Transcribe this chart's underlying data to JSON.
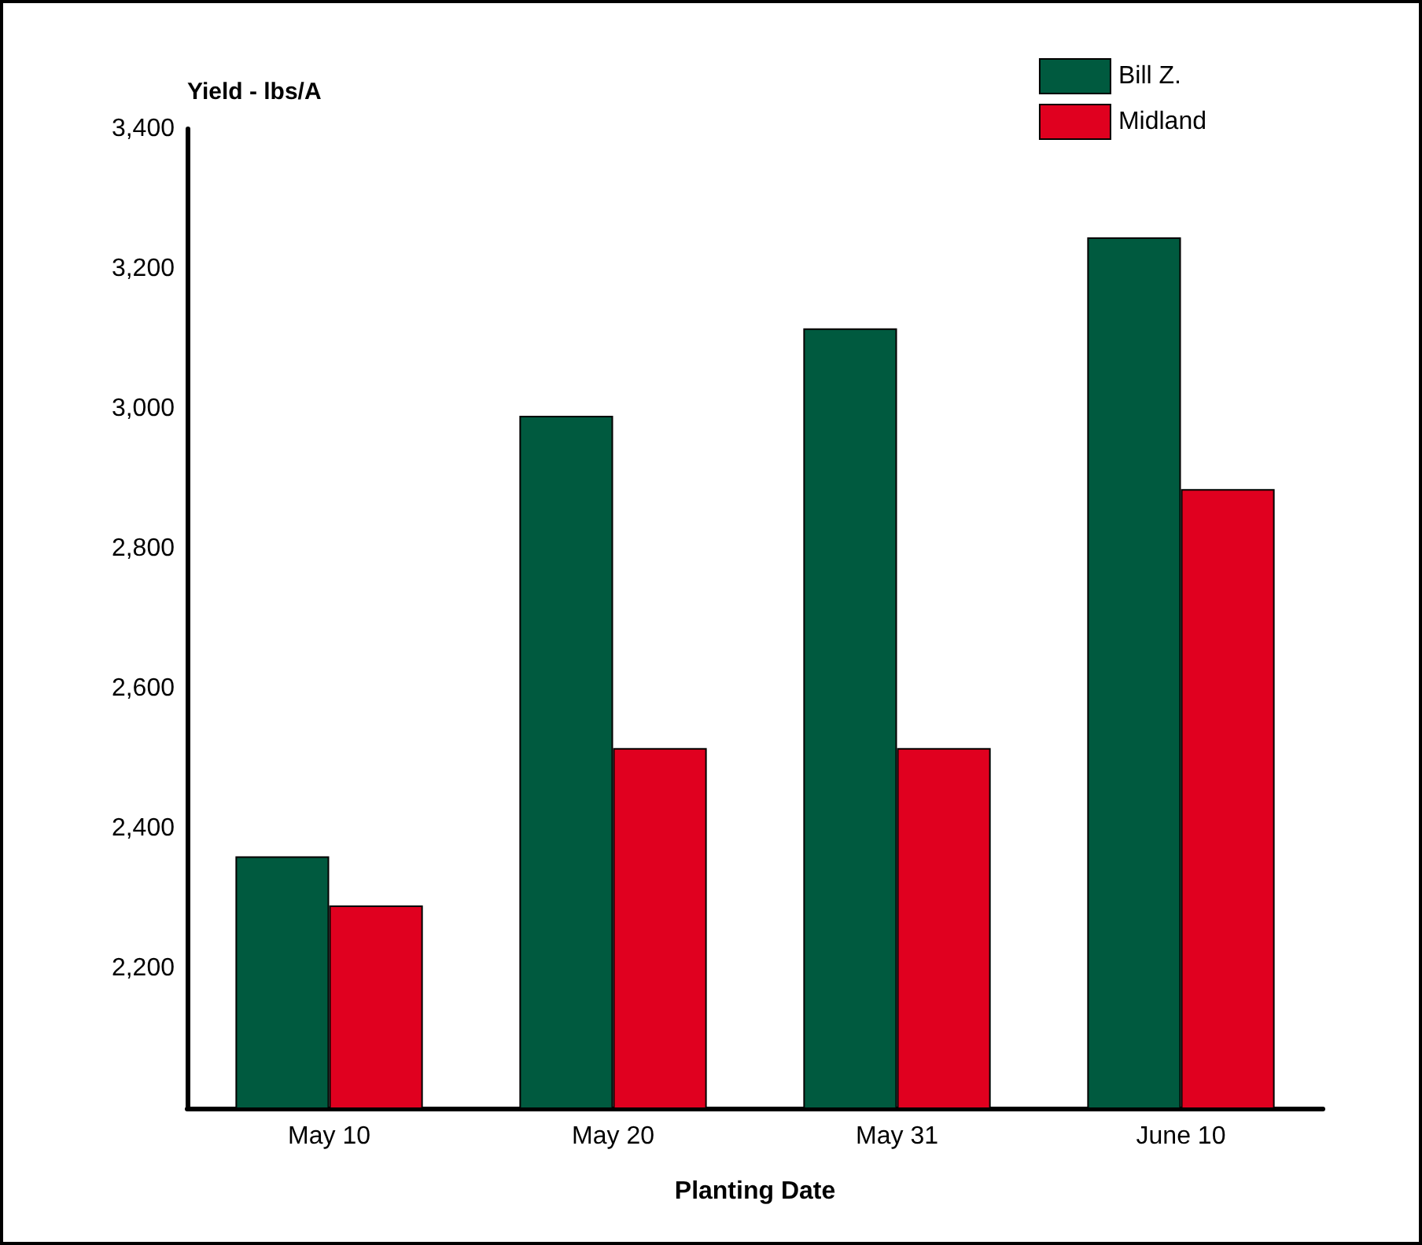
{
  "chart_data": {
    "type": "bar",
    "xlabel": "Planting Date",
    "ylabel": "Yield - lbs/A",
    "categories": [
      "May 10",
      "May 20",
      "May 31",
      "June 10"
    ],
    "series": [
      {
        "name": "Bill Z.",
        "color": "#005a3f",
        "values": [
          2360,
          2990,
          3115,
          3245
        ]
      },
      {
        "name": "Midland",
        "color": "#e0001f",
        "values": [
          2290,
          2515,
          2515,
          2885
        ]
      }
    ],
    "ylim": [
      2000,
      3400
    ],
    "yticks": [
      {
        "value": 2200,
        "label": "2,200"
      },
      {
        "value": 2400,
        "label": "2,400"
      },
      {
        "value": 2600,
        "label": "2,600"
      },
      {
        "value": 2800,
        "label": "2,800"
      },
      {
        "value": 3000,
        "label": "3,000"
      },
      {
        "value": 3200,
        "label": "3,200"
      },
      {
        "value": 3400,
        "label": "3,400"
      }
    ],
    "grid": false,
    "legend": "top right"
  }
}
